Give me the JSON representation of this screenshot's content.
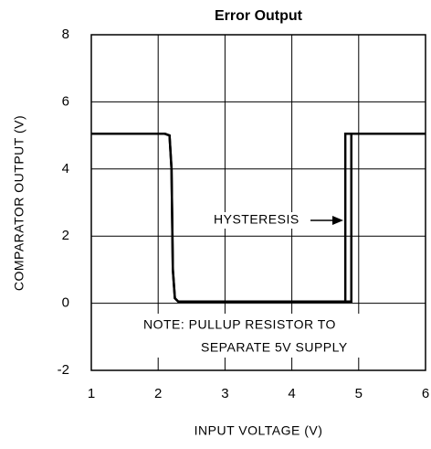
{
  "chart_data": {
    "type": "line",
    "title": "Error Output",
    "x_label": "INPUT VOLTAGE (V)",
    "y_label": "COMPARATOR OUTPUT (V)",
    "series": [
      {
        "color": "#000000",
        "x": [
          1,
          2.1,
          2.17,
          2.2,
          2.22,
          2.25,
          2.3,
          4.8,
          4.8,
          6
        ],
        "values": [
          5.05,
          5.05,
          5.0,
          4.0,
          1.0,
          0.15,
          0.05,
          0.05,
          5.05,
          5.05
        ]
      },
      {
        "color": "#000000",
        "x": [
          1,
          2.1,
          2.17,
          2.2,
          2.22,
          2.25,
          2.3,
          4.89,
          4.89,
          6
        ],
        "values": [
          5.05,
          5.05,
          5.0,
          4.0,
          1.0,
          0.15,
          0.05,
          0.05,
          5.05,
          5.05
        ]
      }
    ],
    "annotations": [
      "HYSTERESIS",
      "NOTE: PULLUP RESISTOR TO",
      "SEPARATE 5V SUPPLY"
    ],
    "xlim": [
      1,
      6
    ],
    "xticks": [
      1,
      2,
      3,
      4,
      5,
      6
    ],
    "ylim": [
      -2,
      8
    ],
    "yticks": [
      -2,
      0,
      2,
      4,
      6,
      8
    ],
    "grid": true
  }
}
